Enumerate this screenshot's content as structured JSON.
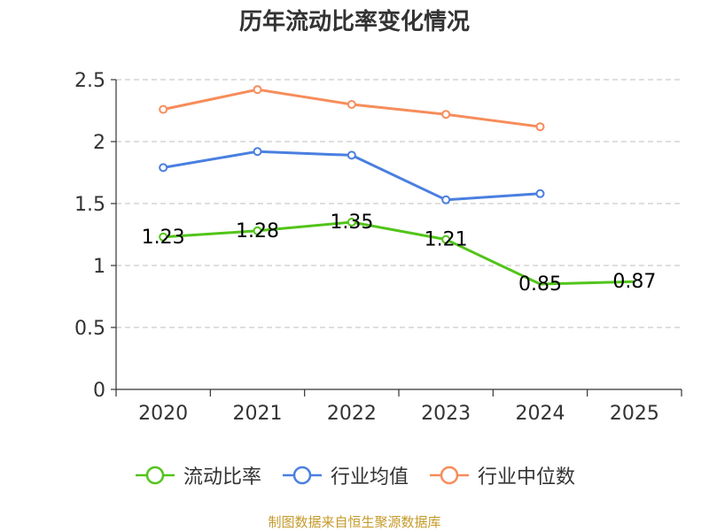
{
  "chart_data": {
    "type": "line",
    "title": "历年流动比率变化情况",
    "categories": [
      "2020",
      "2021",
      "2022",
      "2023",
      "2024",
      "2025"
    ],
    "ylim": [
      0,
      2.5
    ],
    "yticks": [
      "0",
      "0.5",
      "1",
      "1.5",
      "2",
      "2.5"
    ],
    "grid": true,
    "legend_position": "bottom",
    "series": [
      {
        "name": "流动比率",
        "color": "#52c41a",
        "values": [
          1.23,
          1.28,
          1.35,
          1.21,
          0.85,
          0.87
        ],
        "labels": [
          "1.23",
          "1.28",
          "1.35",
          "1.21",
          "0.85",
          "0.87"
        ]
      },
      {
        "name": "行业均值",
        "color": "#4a7fe0",
        "values": [
          1.79,
          1.92,
          1.89,
          1.53,
          1.58,
          null
        ]
      },
      {
        "name": "行业中位数",
        "color": "#f78c5a",
        "values": [
          2.26,
          2.42,
          2.3,
          2.22,
          2.12,
          null
        ]
      }
    ]
  },
  "source": "制图数据来自恒生聚源数据库"
}
